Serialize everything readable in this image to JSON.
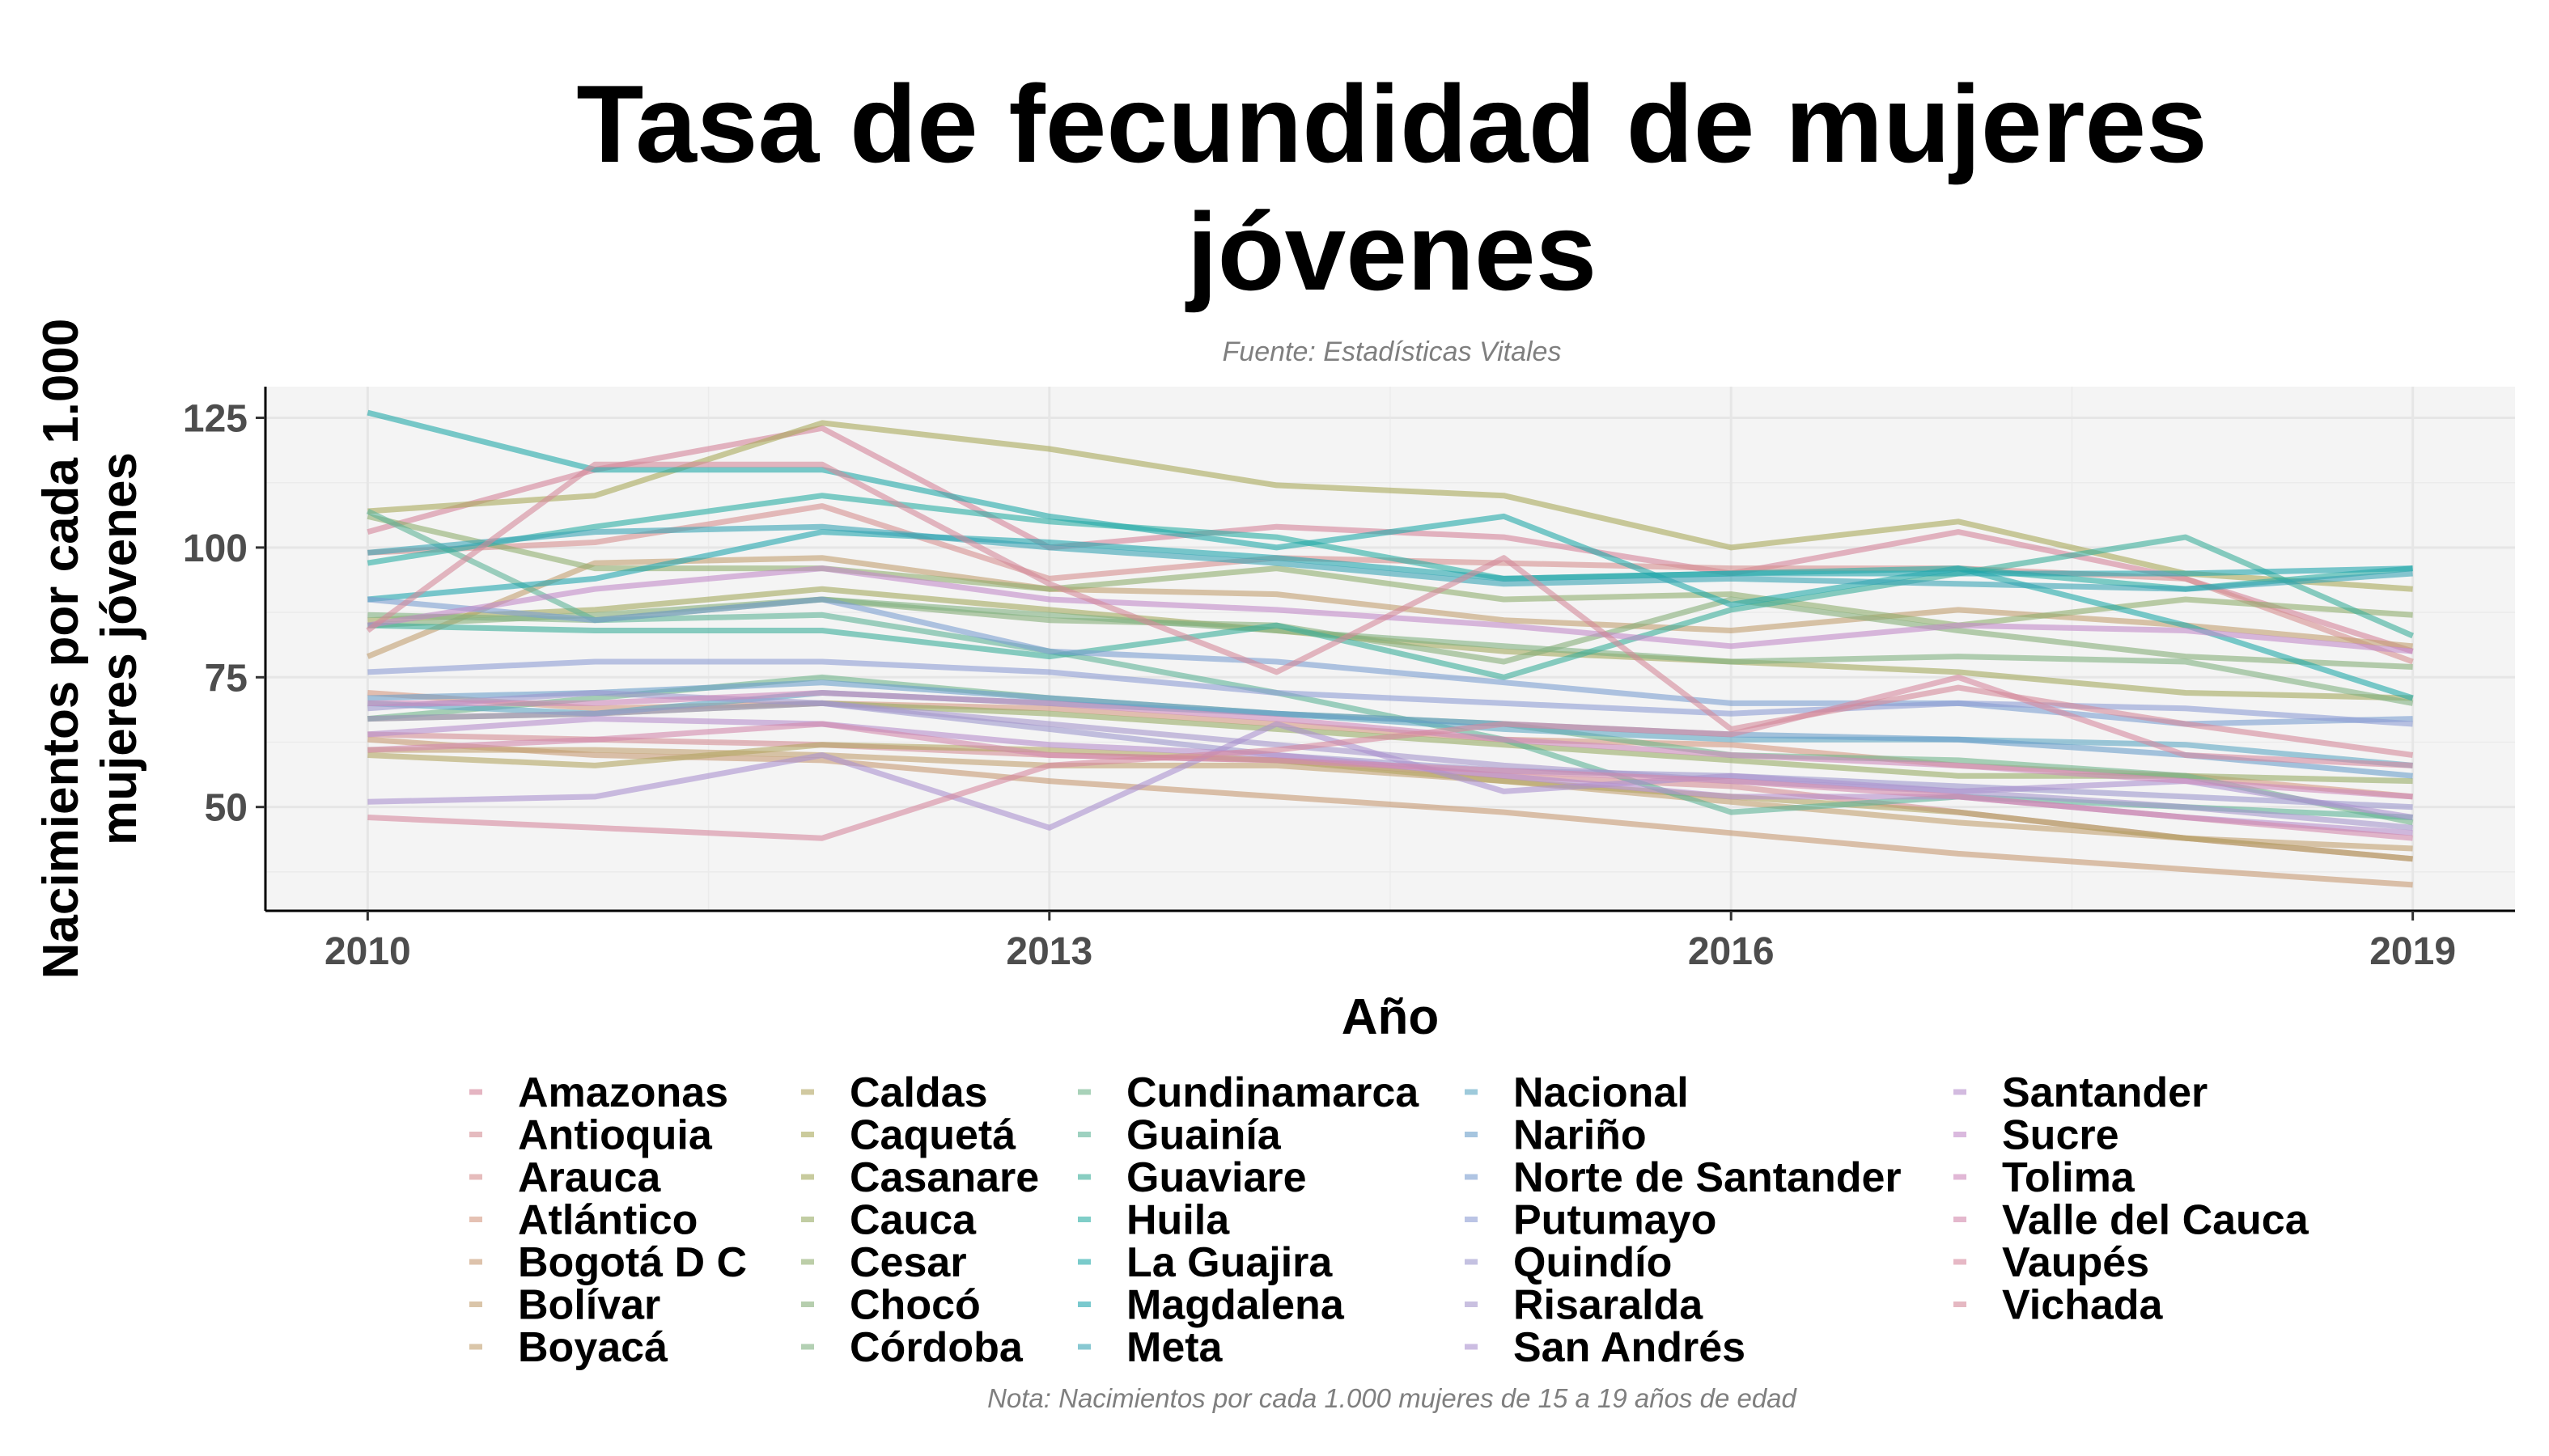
{
  "chart_data": {
    "type": "line",
    "title": "Tasa de fecundidad de mujeres jóvenes",
    "title_lines": [
      "Tasa de fecundidad de mujeres",
      "jóvenes"
    ],
    "subtitle": "Fuente: Estadísticas Vitales",
    "caption": "Nota: Nacimientos por cada 1.000 mujeres de 15 a 19 años de edad",
    "xlabel": "Año",
    "ylabel": "Nacimientos por cada 1.000 mujeres jóvenes",
    "ylabel_lines": [
      "Nacimientos por cada 1.000",
      "mujeres jóvenes"
    ],
    "x": [
      2010,
      2011,
      2012,
      2013,
      2014,
      2015,
      2016,
      2017,
      2018,
      2019
    ],
    "x_ticks": [
      "2010",
      "2013",
      "2016",
      "2019"
    ],
    "y_ticks": [
      "50",
      "75",
      "100",
      "125"
    ],
    "xlim": [
      2009.55,
      2019.45
    ],
    "ylim": [
      30,
      131
    ],
    "grid": true,
    "legend_position": "bottom",
    "line_opacity": 0.6,
    "series": [
      {
        "name": "Amazonas",
        "color": "#d4849a",
        "values": [
          103,
          115,
          123,
          100,
          104,
          102,
          95,
          103,
          94,
          80
        ]
      },
      {
        "name": "Antioquia",
        "color": "#d48d95",
        "values": [
          64,
          63,
          62,
          60,
          59,
          56,
          54,
          49,
          44,
          40
        ]
      },
      {
        "name": "Arauca",
        "color": "#d5908f",
        "values": [
          99,
          101,
          108,
          94,
          98,
          97,
          96,
          96,
          94,
          78
        ]
      },
      {
        "name": "Atlántico",
        "color": "#d49880",
        "values": [
          72,
          69,
          70,
          69,
          66,
          63,
          62,
          58,
          56,
          52
        ]
      },
      {
        "name": "Bogotá D C",
        "color": "#c69a73",
        "values": [
          63,
          60,
          59,
          55,
          52,
          49,
          45,
          41,
          38,
          35
        ]
      },
      {
        "name": "Bolívar",
        "color": "#c29f6f",
        "values": [
          79,
          97,
          98,
          92,
          91,
          86,
          84,
          88,
          85,
          81
        ]
      },
      {
        "name": "Boyacá",
        "color": "#c2a070",
        "values": [
          61,
          61,
          60,
          58,
          58,
          55,
          51,
          47,
          44,
          42
        ]
      },
      {
        "name": "Caldas",
        "color": "#b2a562",
        "values": [
          60,
          58,
          62,
          61,
          59,
          55,
          52,
          49,
          44,
          40
        ]
      },
      {
        "name": "Caquetá",
        "color": "#a9a95a",
        "values": [
          107,
          110,
          124,
          119,
          112,
          110,
          100,
          105,
          95,
          92
        ]
      },
      {
        "name": "Casanare",
        "color": "#a4a95e",
        "values": [
          86,
          88,
          92,
          88,
          84,
          80,
          78,
          76,
          72,
          71
        ]
      },
      {
        "name": "Cauca",
        "color": "#98ab66",
        "values": [
          67,
          68,
          70,
          68,
          65,
          62,
          59,
          56,
          56,
          55
        ]
      },
      {
        "name": "Cesar",
        "color": "#8fae6e",
        "values": [
          106,
          96,
          96,
          92,
          96,
          90,
          91,
          85,
          90,
          87
        ]
      },
      {
        "name": "Chocó",
        "color": "#86ae78",
        "values": [
          85,
          87,
          90,
          86,
          85,
          78,
          90,
          84,
          79,
          77
        ]
      },
      {
        "name": "Córdoba",
        "color": "#80b081",
        "values": [
          87,
          86,
          90,
          87,
          84,
          81,
          78,
          79,
          78,
          70
        ]
      },
      {
        "name": "Cundinamarca",
        "color": "#6fb48b",
        "values": [
          67,
          71,
          75,
          71,
          68,
          66,
          60,
          59,
          56,
          47
        ]
      },
      {
        "name": "Guainía",
        "color": "#5db396",
        "values": [
          107,
          86,
          87,
          80,
          72,
          63,
          49,
          52,
          50,
          48
        ]
      },
      {
        "name": "Guaviare",
        "color": "#3aad9a",
        "values": [
          85,
          84,
          84,
          79,
          85,
          75,
          88,
          95,
          102,
          83
        ]
      },
      {
        "name": "Huila",
        "color": "#2aaea3",
        "values": [
          97,
          104,
          110,
          105,
          102,
          94,
          95,
          96,
          92,
          96
        ]
      },
      {
        "name": "La Guajira",
        "color": "#22a9a9",
        "values": [
          126,
          115,
          115,
          106,
          100,
          106,
          89,
          96,
          85,
          71
        ]
      },
      {
        "name": "Magdalena",
        "color": "#22a5ad",
        "values": [
          90,
          94,
          103,
          101,
          98,
          94,
          95,
          95,
          95,
          96
        ]
      },
      {
        "name": "Meta",
        "color": "#38a4b4",
        "values": [
          99,
          103,
          104,
          100,
          97,
          93,
          94,
          93,
          92,
          95
        ]
      },
      {
        "name": "Nacional",
        "color": "#5ea7c3",
        "values": [
          70,
          68,
          72,
          70,
          68,
          65,
          63,
          63,
          62,
          58
        ]
      },
      {
        "name": "Nariño",
        "color": "#6a9fca",
        "values": [
          71,
          72,
          74,
          71,
          68,
          66,
          64,
          63,
          60,
          56
        ]
      },
      {
        "name": "Norte de Santander",
        "color": "#7c9fd1",
        "values": [
          90,
          86,
          90,
          80,
          78,
          74,
          70,
          70,
          66,
          67
        ]
      },
      {
        "name": "Putumayo",
        "color": "#8e9cd3",
        "values": [
          76,
          78,
          78,
          76,
          72,
          70,
          68,
          70,
          69,
          66
        ]
      },
      {
        "name": "Quindío",
        "color": "#9c97cd",
        "values": [
          69,
          72,
          70,
          65,
          60,
          57,
          56,
          54,
          52,
          50
        ]
      },
      {
        "name": "Risaralda",
        "color": "#a596cb",
        "values": [
          67,
          68,
          70,
          66,
          62,
          58,
          55,
          53,
          50,
          46
        ]
      },
      {
        "name": "San Andrés",
        "color": "#aa91cf",
        "values": [
          51,
          52,
          60,
          46,
          66,
          53,
          56,
          53,
          55,
          48
        ]
      },
      {
        "name": "Santander",
        "color": "#b58ecb",
        "values": [
          64,
          67,
          66,
          62,
          60,
          56,
          52,
          52,
          48,
          45
        ]
      },
      {
        "name": "Sucre",
        "color": "#c28ac8",
        "values": [
          85,
          92,
          96,
          90,
          88,
          85,
          81,
          85,
          84,
          80
        ]
      },
      {
        "name": "Tolima",
        "color": "#cd89bb",
        "values": [
          70,
          70,
          72,
          70,
          67,
          63,
          60,
          58,
          55,
          52
        ]
      },
      {
        "name": "Valle del Cauca",
        "color": "#d288ac",
        "values": [
          61,
          63,
          66,
          60,
          59,
          57,
          55,
          52,
          48,
          44
        ]
      },
      {
        "name": "Vaupés",
        "color": "#d5889e",
        "values": [
          48,
          46,
          44,
          58,
          61,
          66,
          64,
          75,
          60,
          58
        ]
      },
      {
        "name": "Vichada",
        "color": "#d38999",
        "values": [
          84,
          116,
          116,
          93,
          76,
          98,
          65,
          73,
          66,
          60
        ]
      }
    ]
  }
}
